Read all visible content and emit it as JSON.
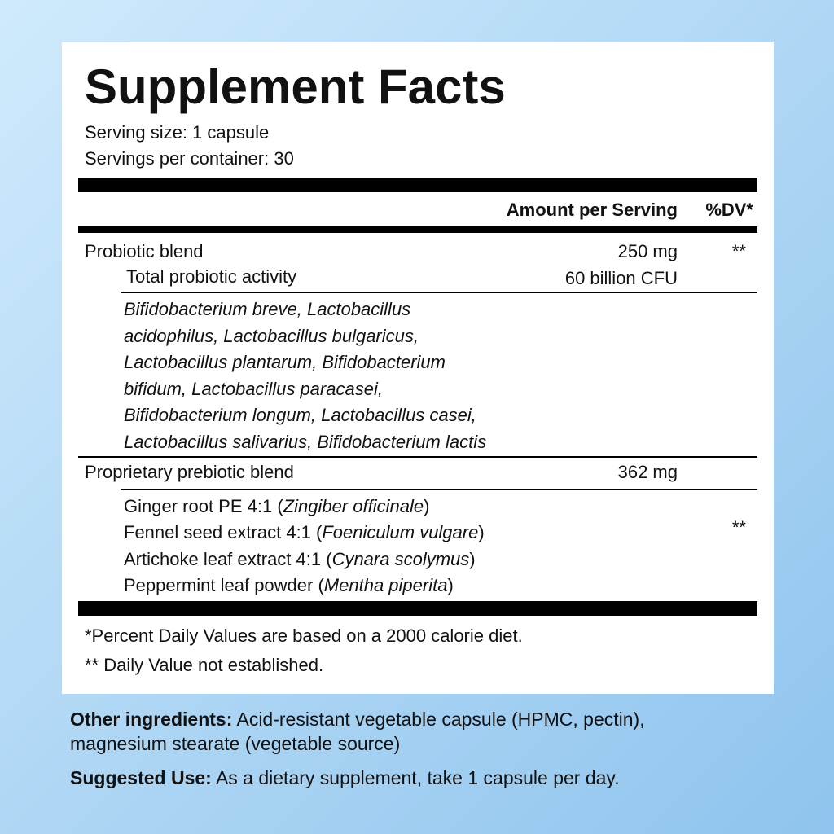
{
  "title": "Supplement Facts",
  "serving_size": "Serving size: 1 capsule",
  "servings_per_container": "Servings per container: 30",
  "header": {
    "amount": "Amount per Serving",
    "dv": "%DV*"
  },
  "probiotic": {
    "name": "Probiotic blend",
    "amount": "250 mg",
    "dv": "**",
    "activity": {
      "name": "Total probiotic activity",
      "amount": "60 billion CFU"
    },
    "strains": [
      "Bifidobacterium breve, Lactobacillus",
      "acidophilus, Lactobacillus bulgaricus,",
      "Lactobacillus plantarum, Bifidobacterium",
      "bifidum, Lactobacillus paracasei,",
      "Bifidobacterium longum, Lactobacillus casei,",
      "Lactobacillus salivarius, Bifidobacterium lactis"
    ]
  },
  "prebiotic": {
    "name": "Proprietary prebiotic blend",
    "amount": "362 mg",
    "dv": "**",
    "ingredients": [
      [
        "Ginger root PE 4:1 (",
        "Zingiber officinale",
        ")"
      ],
      [
        "Fennel seed extract 4:1 (",
        "Foeniculum vulgare",
        ")"
      ],
      [
        "Artichoke leaf extract 4:1 (",
        "Cynara scolymus",
        ")"
      ],
      [
        "Peppermint leaf powder (",
        "Mentha piperita",
        ")"
      ]
    ]
  },
  "footnotes": [
    "*Percent Daily Values are based on a 2000 calorie diet.",
    "** Daily Value not established."
  ],
  "other_ingredients": {
    "label": "Other ingredients:",
    "lines": [
      "Acid-resistant vegetable capsule (HPMC, pectin),",
      "magnesium stearate (vegetable source)"
    ]
  },
  "suggested_use": {
    "label": "Suggested Use:",
    "text": "As a dietary supplement, take 1 capsule per day."
  }
}
